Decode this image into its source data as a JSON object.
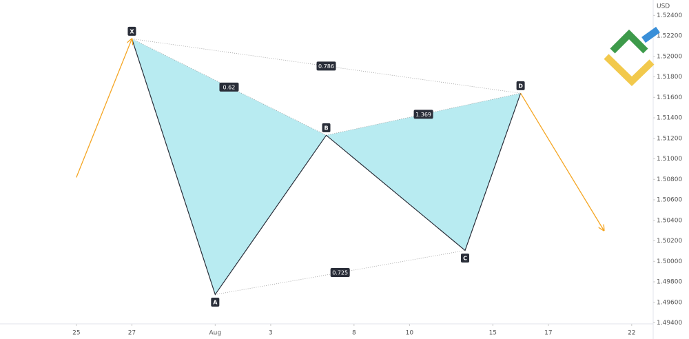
{
  "chart_data": {
    "type": "harmonic-pattern",
    "y_axis_label": "USD",
    "point_labels": [
      "X",
      "A",
      "B",
      "C",
      "D"
    ],
    "x": [
      2,
      5,
      9,
      14,
      16
    ],
    "values": [
      1.52171,
      1.49676,
      1.5123,
      1.50106,
      1.5164
    ],
    "ratios": [
      {
        "from": "X",
        "to": "B",
        "value": 0.62
      },
      {
        "from": "X",
        "to": "D",
        "value": 0.786
      },
      {
        "from": "B",
        "to": "D",
        "value": 1.369
      },
      {
        "from": "A",
        "to": "C",
        "value": 0.725
      }
    ],
    "arrows": [
      {
        "x": [
          0,
          2
        ],
        "values": [
          1.50819,
          1.52171
        ]
      },
      {
        "x": [
          16,
          19
        ],
        "values": [
          1.5164,
          1.50301
        ]
      }
    ],
    "fill_color": "#b8ebf1",
    "line_color": "#2a2e39",
    "arrow_color": "#f5a623",
    "xlim": [
      -2.75,
      20.7
    ],
    "ylim": [
      1.4939,
      1.5255
    ],
    "xticks": [
      {
        "value": 0,
        "label": "25"
      },
      {
        "value": 2,
        "label": "27"
      },
      {
        "value": 5,
        "label": "Aug"
      },
      {
        "value": 7,
        "label": "3"
      },
      {
        "value": 10,
        "label": "8"
      },
      {
        "value": 12,
        "label": "10"
      },
      {
        "value": 15,
        "label": "15"
      },
      {
        "value": 17,
        "label": "17"
      },
      {
        "value": 20,
        "label": "22"
      }
    ],
    "yticks": [
      {
        "value": 1.494,
        "label": "1.49400"
      },
      {
        "value": 1.496,
        "label": "1.49600"
      },
      {
        "value": 1.498,
        "label": "1.49800"
      },
      {
        "value": 1.5,
        "label": "1.50000"
      },
      {
        "value": 1.502,
        "label": "1.50200"
      },
      {
        "value": 1.504,
        "label": "1.50400"
      },
      {
        "value": 1.506,
        "label": "1.50600"
      },
      {
        "value": 1.508,
        "label": "1.50800"
      },
      {
        "value": 1.51,
        "label": "1.51000"
      },
      {
        "value": 1.512,
        "label": "1.51200"
      },
      {
        "value": 1.514,
        "label": "1.51400"
      },
      {
        "value": 1.516,
        "label": "1.51600"
      },
      {
        "value": 1.518,
        "label": "1.51800"
      },
      {
        "value": 1.52,
        "label": "1.52000"
      },
      {
        "value": 1.522,
        "label": "1.52200"
      },
      {
        "value": 1.524,
        "label": "1.52400"
      }
    ]
  }
}
